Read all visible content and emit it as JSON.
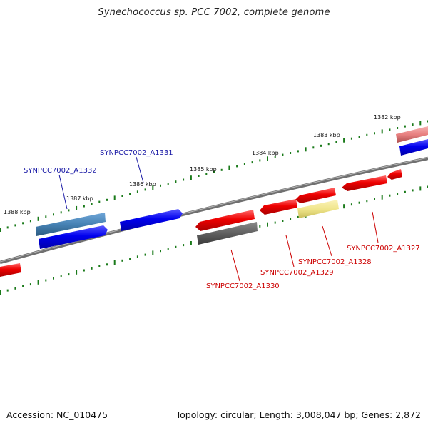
{
  "title": "Synechococcus sp. PCC 7002, complete genome",
  "footer": {
    "accession": "Accession: NC_010475",
    "summary": "Topology: circular; Length: 3,008,047 bp; Genes: 2,872"
  },
  "scale_labels": [
    "1382 kbp",
    "1383 kbp",
    "1384 kbp",
    "1385 kbp",
    "1386 kbp",
    "1387 kbp",
    "1388 kbp"
  ],
  "gene_labels": [
    {
      "text": "SYNPCC7002_A1332",
      "color": "#1a1aa6"
    },
    {
      "text": "SYNPCC7002_A1331",
      "color": "#1a1aa6"
    },
    {
      "text": "SYNPCC7002_A1330",
      "color": "#cc0000"
    },
    {
      "text": "SYNPCC7002_A1329",
      "color": "#cc0000"
    },
    {
      "text": "SYNPCC7002_A1328",
      "color": "#cc0000"
    },
    {
      "text": "SYNPCC7002_A1327",
      "color": "#cc0000"
    }
  ],
  "colors": {
    "forward_cds": "#0000ee",
    "reverse_cds": "#ee0000",
    "highlight_steelblue": "#4682b4",
    "highlight_gray": "#606060",
    "highlight_khaki": "#f0e68c",
    "highlight_pink": "#e88080",
    "backbone": "#808080",
    "tick": "#1a7a1a"
  }
}
